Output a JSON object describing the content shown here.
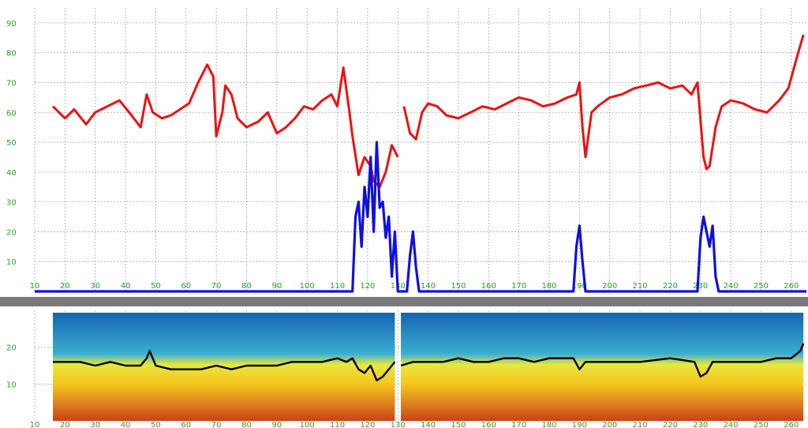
{
  "chart_data": [
    {
      "type": "line",
      "title": "",
      "xlabel": "",
      "ylabel": "",
      "xlim": [
        10,
        265
      ],
      "ylim": [
        0,
        95
      ],
      "x_ticks": [
        10,
        20,
        30,
        40,
        50,
        60,
        70,
        80,
        90,
        100,
        110,
        120,
        130,
        140,
        150,
        160,
        170,
        180,
        190,
        200,
        210,
        220,
        230,
        240,
        250,
        260
      ],
      "x_tick_labels": [
        "10",
        "20",
        "30",
        "40",
        "50",
        "60",
        "70",
        "80",
        "90",
        "100",
        "110",
        "120",
        "130",
        "140",
        "150",
        "160",
        "170",
        "180",
        "190",
        "200",
        "210",
        "220",
        "230",
        "240",
        "250",
        "260"
      ],
      "y_ticks": [
        10,
        20,
        30,
        40,
        50,
        60,
        70,
        80,
        90
      ],
      "y_tick_labels": [
        "10",
        "20",
        "30",
        "40",
        "50",
        "60",
        "70",
        "80",
        "90"
      ],
      "grid": true,
      "series": [
        {
          "color": "#ee1111",
          "x": [
            16,
            20,
            23,
            27,
            30,
            34,
            38,
            42,
            45,
            47,
            49,
            52,
            55,
            58,
            61,
            64,
            67,
            69,
            70,
            72,
            73,
            75,
            77,
            80,
            84,
            87,
            90,
            93,
            96,
            99,
            102,
            105,
            108,
            110,
            112,
            114,
            115,
            117,
            119,
            121,
            122,
            124,
            126,
            128,
            130,
            null,
            132,
            134,
            136,
            138,
            140,
            143,
            146,
            150,
            154,
            158,
            162,
            166,
            170,
            174,
            178,
            182,
            186,
            189,
            190,
            191,
            192,
            194,
            196,
            200,
            204,
            208,
            212,
            216,
            220,
            224,
            227,
            229,
            231,
            232,
            233,
            235,
            237,
            240,
            244,
            248,
            252,
            256,
            259,
            262,
            264
          ],
          "y": [
            62,
            58,
            61,
            56,
            60,
            62,
            64,
            59,
            55,
            66,
            60,
            58,
            59,
            61,
            63,
            70,
            76,
            72,
            52,
            60,
            69,
            66,
            58,
            55,
            57,
            60,
            53,
            55,
            58,
            62,
            61,
            64,
            66,
            62,
            75,
            60,
            52,
            39,
            45,
            42,
            37,
            35,
            40,
            49,
            45,
            null,
            62,
            53,
            51,
            60,
            63,
            62,
            59,
            58,
            60,
            62,
            61,
            63,
            65,
            64,
            62,
            63,
            65,
            66,
            70,
            55,
            45,
            60,
            62,
            65,
            66,
            68,
            69,
            70,
            68,
            69,
            66,
            70,
            45,
            41,
            42,
            55,
            62,
            64,
            63,
            61,
            60,
            64,
            68,
            79,
            86
          ]
        },
        {
          "color": "#1010dd",
          "x": [
            10,
            115,
            116,
            117,
            118,
            119,
            120,
            121,
            122,
            123,
            124,
            125,
            126,
            127,
            128,
            129,
            130,
            131,
            132,
            133,
            134,
            135,
            136,
            137,
            138,
            187,
            188,
            189,
            190,
            191,
            192,
            193,
            228,
            229,
            230,
            231,
            232,
            233,
            234,
            235,
            236,
            265
          ],
          "y": [
            0,
            0,
            25,
            30,
            15,
            35,
            25,
            45,
            20,
            50,
            28,
            30,
            18,
            25,
            5,
            20,
            0,
            0,
            0,
            0,
            12,
            20,
            8,
            0,
            0,
            0,
            0,
            15,
            22,
            10,
            0,
            0,
            0,
            0,
            18,
            25,
            20,
            15,
            22,
            5,
            0,
            0
          ]
        }
      ]
    },
    {
      "type": "heatmap",
      "title": "",
      "xlabel": "",
      "ylabel": "",
      "xlim": [
        10,
        265
      ],
      "ylim": [
        0,
        30
      ],
      "x_ticks": [
        10,
        20,
        30,
        40,
        50,
        60,
        70,
        80,
        90,
        100,
        110,
        120,
        130,
        140,
        150,
        160,
        170,
        180,
        190,
        200,
        210,
        220,
        230,
        240,
        250,
        260
      ],
      "x_tick_labels": [
        "10",
        "20",
        "30",
        "40",
        "50",
        "60",
        "70",
        "80",
        "90",
        "100",
        "110",
        "120",
        "130",
        "140",
        "150",
        "160",
        "170",
        "180",
        "190",
        "200",
        "210",
        "220",
        "230",
        "240",
        "250",
        "260"
      ],
      "y_ticks": [
        10,
        20
      ],
      "y_tick_labels": [
        "10",
        "20"
      ],
      "grid": true,
      "colorscale": [
        "#c8421a",
        "#f5c21e",
        "#e8e83c",
        "#3aaed2",
        "#1465b0"
      ],
      "data_ranges": [
        [
          16,
          129
        ],
        [
          131,
          264
        ]
      ],
      "series": [
        {
          "color": "#000000",
          "x": [
            16,
            20,
            25,
            30,
            35,
            40,
            45,
            47,
            48,
            50,
            55,
            60,
            65,
            70,
            75,
            80,
            85,
            90,
            95,
            100,
            105,
            110,
            113,
            115,
            117,
            119,
            121,
            123,
            125,
            127,
            129,
            null,
            131,
            135,
            140,
            145,
            150,
            155,
            160,
            165,
            170,
            175,
            180,
            185,
            188,
            190,
            192,
            195,
            200,
            210,
            220,
            228,
            230,
            232,
            234,
            236,
            240,
            245,
            250,
            255,
            260,
            263,
            264
          ],
          "y": [
            16,
            16,
            16,
            15,
            16,
            15,
            15,
            17,
            19,
            15,
            14,
            14,
            14,
            15,
            14,
            15,
            15,
            15,
            16,
            16,
            16,
            17,
            16,
            17,
            14,
            13,
            15,
            11,
            12,
            14,
            16,
            null,
            15,
            16,
            16,
            16,
            17,
            16,
            16,
            17,
            17,
            16,
            17,
            17,
            17,
            14,
            16,
            16,
            16,
            16,
            17,
            16,
            12,
            13,
            16,
            16,
            16,
            16,
            16,
            17,
            17,
            19,
            21
          ]
        }
      ]
    }
  ]
}
